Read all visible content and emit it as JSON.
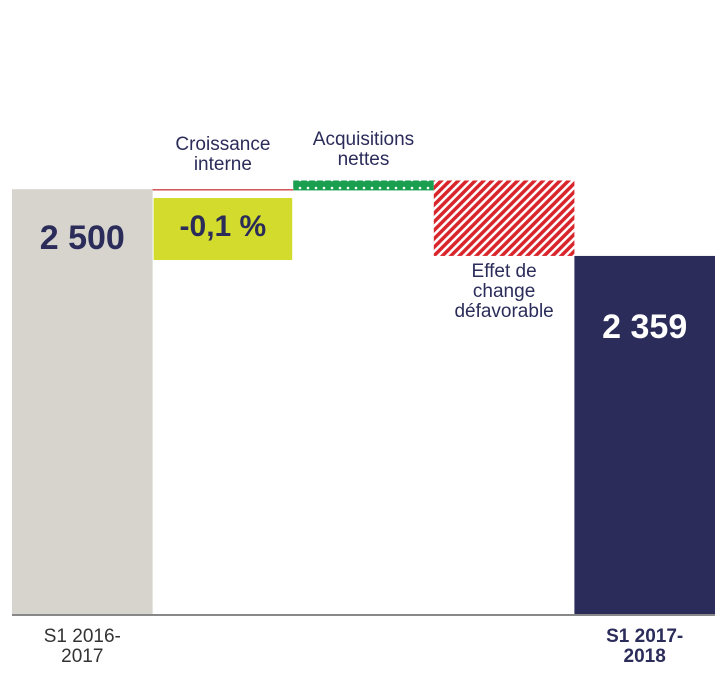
{
  "chart_data": {
    "type": "waterfall",
    "categories": [
      "S1 2016-2017",
      "Croissance interne",
      "Acquisitions nettes",
      "Effet de change défavorable",
      "S1 2017-2018"
    ],
    "values": [
      2500,
      -2.5,
      21,
      -159.5,
      2359
    ],
    "value_labels": [
      "2 500",
      null,
      null,
      null,
      "2 359"
    ],
    "totals": [
      true,
      false,
      false,
      false,
      true
    ],
    "colors": [
      "#d6d4cd",
      "#c8282e",
      "#1a9e4f",
      "#d9262c",
      "#2b2c5a"
    ],
    "ylim": [
      1600,
      2900
    ],
    "annotations": [
      {
        "text": "-0,1 %",
        "index": 1
      }
    ]
  }
}
